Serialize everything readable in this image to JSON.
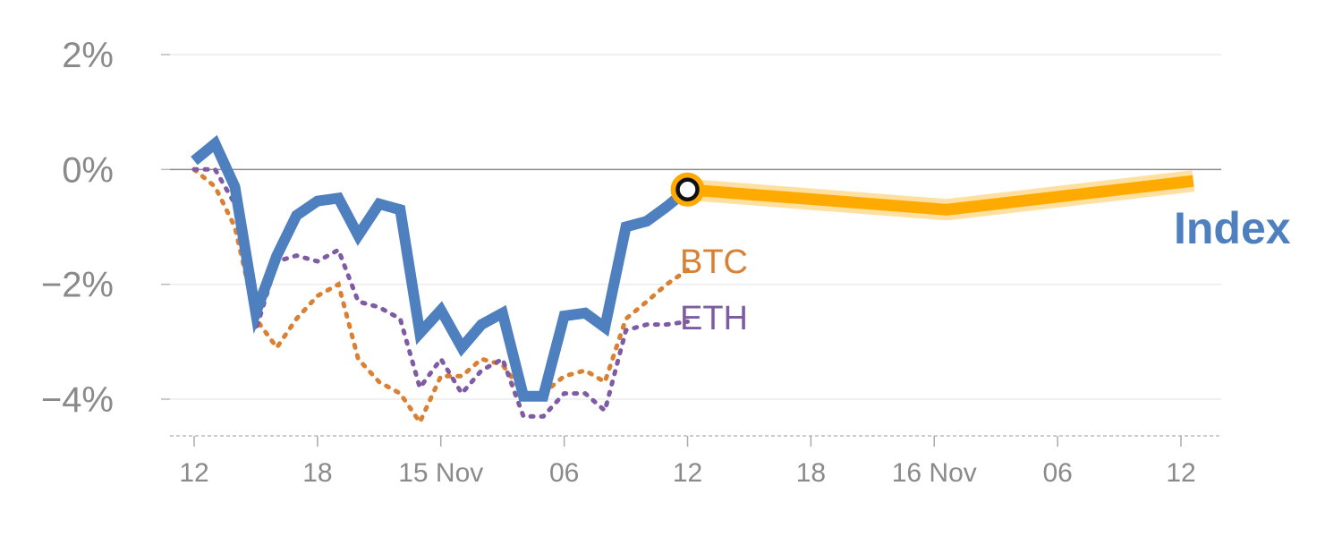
{
  "colors": {
    "index": "#4e7fbf",
    "btc": "#d98033",
    "eth": "#7e5ba3",
    "forecast": "#ffaa00",
    "forecast_halo": "#ffe0a0",
    "zero_line": "#8c8c8c",
    "grid": "#e6e6e6",
    "text": "#8a8a8a"
  },
  "chart_data": {
    "type": "line",
    "ylim": [
      -4.6,
      2.0
    ],
    "y_ticks": [
      {
        "value": 2,
        "label": "2%"
      },
      {
        "value": 0,
        "label": "0%"
      },
      {
        "value": -2,
        "label": "−2%"
      },
      {
        "value": -4,
        "label": "−4%"
      }
    ],
    "xlim": [
      -0.2,
      8.4
    ],
    "x_ticks": [
      {
        "value": 0,
        "label": "12"
      },
      {
        "value": 1,
        "label": "18"
      },
      {
        "value": 2,
        "label": "15 Nov"
      },
      {
        "value": 3,
        "label": "06"
      },
      {
        "value": 4,
        "label": "12"
      },
      {
        "value": 5,
        "label": "18"
      },
      {
        "value": 6,
        "label": "16 Nov"
      },
      {
        "value": 7,
        "label": "06"
      },
      {
        "value": 8,
        "label": "12"
      }
    ],
    "series": [
      {
        "name": "BTC",
        "style": "dotted",
        "x": [
          0,
          0.17,
          0.33,
          0.5,
          0.67,
          0.83,
          1.0,
          1.17,
          1.33,
          1.5,
          1.67,
          1.83,
          2.0,
          2.17,
          2.33,
          2.5,
          2.67,
          2.83,
          3.0,
          3.17,
          3.33,
          3.5,
          3.67,
          3.83,
          4.0
        ],
        "values": [
          0.0,
          -0.3,
          -1.0,
          -2.6,
          -3.1,
          -2.6,
          -2.2,
          -2.0,
          -3.3,
          -3.7,
          -3.9,
          -4.4,
          -3.6,
          -3.6,
          -3.3,
          -3.4,
          -3.9,
          -3.9,
          -3.6,
          -3.5,
          -3.7,
          -2.6,
          -2.3,
          -2.0,
          -1.75
        ]
      },
      {
        "name": "ETH",
        "style": "dotted",
        "x": [
          0,
          0.17,
          0.33,
          0.5,
          0.67,
          0.83,
          1.0,
          1.17,
          1.33,
          1.5,
          1.67,
          1.83,
          2.0,
          2.17,
          2.33,
          2.5,
          2.67,
          2.83,
          3.0,
          3.17,
          3.33,
          3.5,
          3.67,
          3.83,
          4.0
        ],
        "values": [
          0.0,
          0.0,
          -0.6,
          -2.8,
          -1.6,
          -1.5,
          -1.6,
          -1.4,
          -2.3,
          -2.4,
          -2.6,
          -3.8,
          -3.3,
          -3.9,
          -3.5,
          -3.3,
          -4.3,
          -4.3,
          -3.9,
          -3.9,
          -4.2,
          -2.8,
          -2.7,
          -2.7,
          -2.65
        ]
      },
      {
        "name": "Index",
        "style": "solid",
        "x": [
          0,
          0.17,
          0.33,
          0.5,
          0.67,
          0.83,
          1.0,
          1.17,
          1.33,
          1.5,
          1.67,
          1.83,
          2.0,
          2.17,
          2.33,
          2.5,
          2.67,
          2.83,
          3.0,
          3.17,
          3.33,
          3.5,
          3.67,
          3.83,
          4.0
        ],
        "values": [
          0.15,
          0.45,
          -0.3,
          -2.5,
          -1.5,
          -0.8,
          -0.55,
          -0.5,
          -1.15,
          -0.6,
          -0.7,
          -2.85,
          -2.45,
          -3.1,
          -2.7,
          -2.5,
          -3.95,
          -3.95,
          -2.55,
          -2.5,
          -2.75,
          -1.0,
          -0.9,
          -0.65,
          -0.35
        ]
      }
    ],
    "forecast": {
      "x": [
        4.0,
        6.1,
        8.1
      ],
      "values": [
        -0.35,
        -0.7,
        -0.2
      ]
    },
    "series_labels": {
      "btc": "BTC",
      "eth": "ETH",
      "index": "Index"
    }
  }
}
